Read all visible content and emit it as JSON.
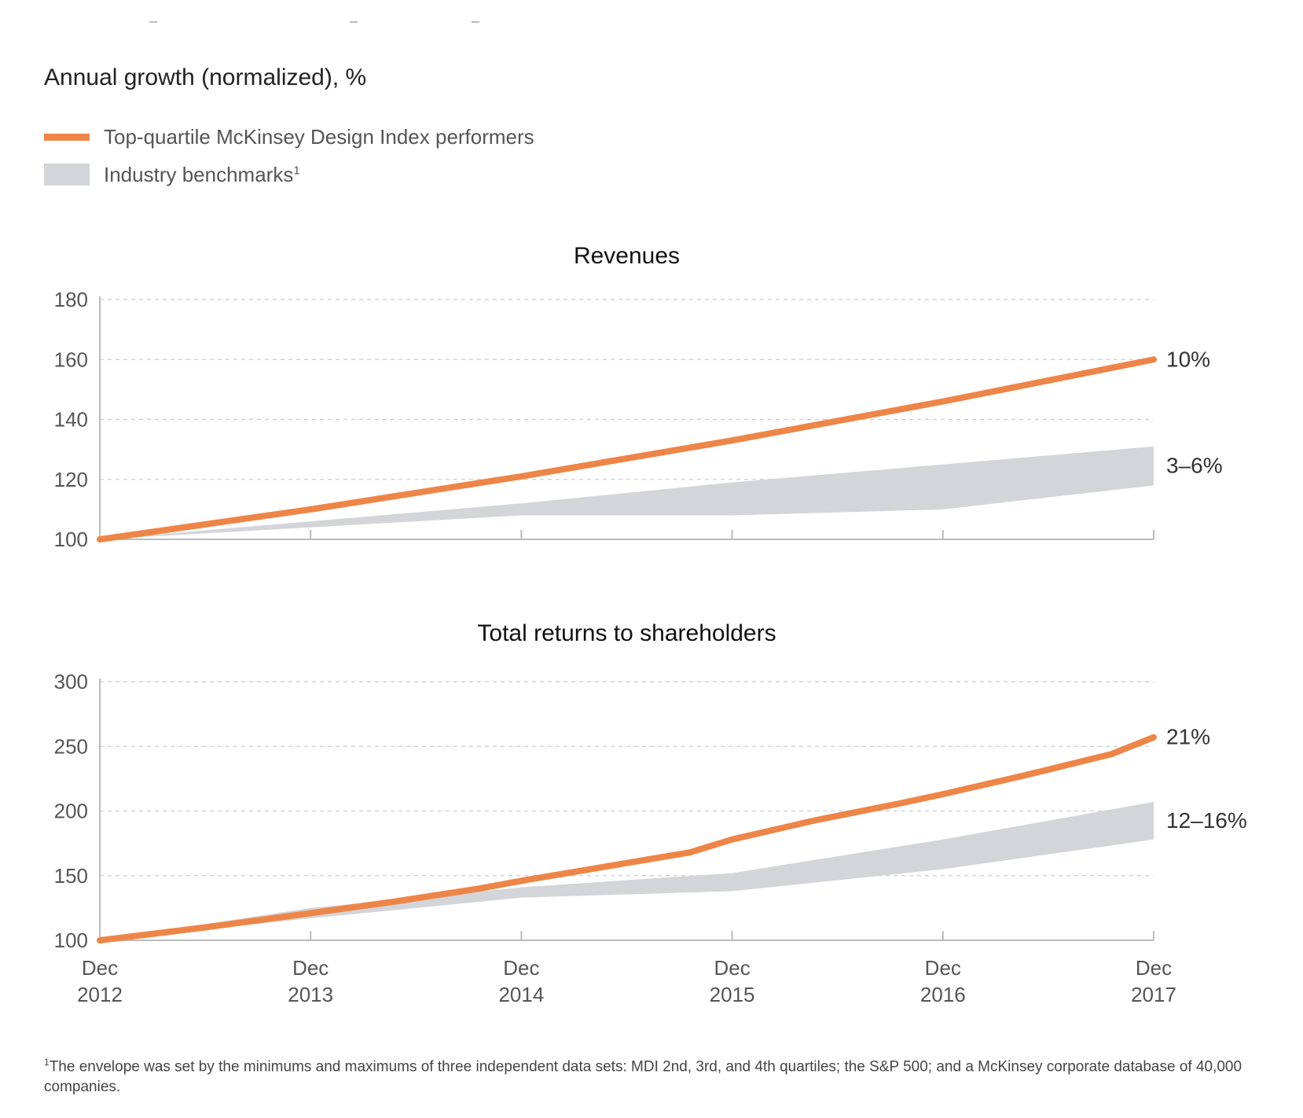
{
  "subtitle": "Annual growth (normalized), %",
  "legend": {
    "top_quartile": "Top-quartile McKinsey Design Index performers",
    "benchmark": "Industry benchmarks",
    "benchmark_sup": "1"
  },
  "colors": {
    "line": "#ee8548",
    "band": "#d3d5d8",
    "grid": "#cccccc",
    "axis": "#bbbbbb",
    "tick_text": "#555555",
    "label_text": "#333333"
  },
  "x_axis": {
    "ticks": [
      {
        "line1": "Dec",
        "line2": "2012"
      },
      {
        "line1": "Dec",
        "line2": "2013"
      },
      {
        "line1": "Dec",
        "line2": "2014"
      },
      {
        "line1": "Dec",
        "line2": "2015"
      },
      {
        "line1": "Dec",
        "line2": "2016"
      },
      {
        "line1": "Dec",
        "line2": "2017"
      }
    ]
  },
  "chart_data": [
    {
      "type": "line",
      "title": "Revenues",
      "xlabel": "",
      "ylabel": "Annual growth (normalized), %",
      "x": [
        2012,
        2013,
        2014,
        2015,
        2016,
        2017
      ],
      "ylim": [
        100,
        180
      ],
      "yticks": [
        100,
        120,
        140,
        160,
        180
      ],
      "series": [
        {
          "name": "Top-quartile McKinsey Design Index performers",
          "x": [
            2012,
            2013,
            2014,
            2015,
            2016,
            2017
          ],
          "values": [
            100,
            110,
            121,
            133,
            146,
            160
          ],
          "end_label": "10%"
        }
      ],
      "band": {
        "name": "Industry benchmarks",
        "x": [
          2012,
          2013,
          2014,
          2015,
          2016,
          2017
        ],
        "low": [
          100,
          104,
          108,
          108,
          110,
          118
        ],
        "high": [
          100,
          106,
          112,
          119,
          125,
          131
        ],
        "end_label": "3–6%"
      }
    },
    {
      "type": "line",
      "title": "Total returns to shareholders",
      "xlabel": "",
      "ylabel": "Annual growth (normalized), %",
      "x": [
        2012,
        2013,
        2014,
        2015,
        2016,
        2017
      ],
      "ylim": [
        100,
        300
      ],
      "yticks": [
        100,
        150,
        200,
        250,
        300
      ],
      "series": [
        {
          "name": "Top-quartile McKinsey Design Index performers",
          "x": [
            2012,
            2012.5,
            2013,
            2013.4,
            2013.8,
            2014,
            2014.4,
            2014.8,
            2015,
            2015.4,
            2015.8,
            2016,
            2016.4,
            2016.8,
            2017
          ],
          "values": [
            100,
            110,
            121,
            130,
            140,
            146,
            157,
            168,
            178,
            193,
            206,
            213,
            228,
            244,
            257
          ],
          "end_label": "21%"
        }
      ],
      "band": {
        "name": "Industry benchmarks",
        "x": [
          2012,
          2013,
          2014,
          2015,
          2016,
          2017
        ],
        "low": [
          100,
          117,
          133,
          138,
          155,
          178
        ],
        "high": [
          100,
          125,
          141,
          152,
          178,
          207
        ],
        "end_label": "12–16%"
      }
    }
  ],
  "footnote": {
    "marker": "1",
    "text": "The envelope was set by the minimums and maximums of three independent data sets: MDI 2nd, 3rd, and 4th quartiles; the S&P 500; and a McKinsey corporate database of 40,000 companies."
  }
}
